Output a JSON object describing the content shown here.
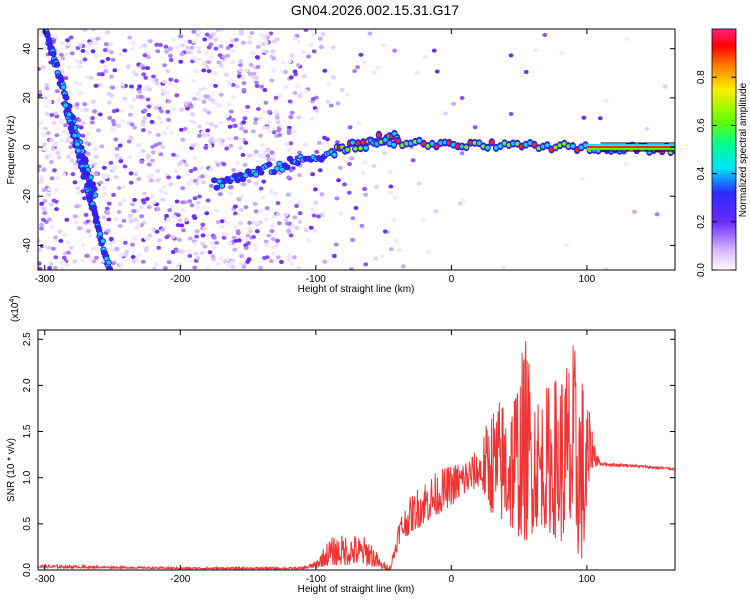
{
  "title": "GN04.2026.002.15.31.G17",
  "colors": {
    "trace": "#ee3333",
    "spectrogram_base": "#6a2bff",
    "frame": "#000000"
  },
  "chart_data": [
    {
      "type": "heatmap",
      "xlabel": "Height of straight line (km)",
      "ylabel": "Frequency (Hz)",
      "xlim": [
        -305,
        165
      ],
      "ylim": [
        -50,
        48
      ],
      "x_ticks": [
        -300,
        -200,
        -100,
        0,
        100
      ],
      "x_tick_labels": [
        "-300",
        "-200",
        "-100",
        "0",
        "100"
      ],
      "y_ticks": [
        -40,
        -20,
        0,
        20,
        40
      ],
      "y_tick_labels": [
        "-40",
        "-20",
        "0",
        "20",
        "40"
      ],
      "colorbar": {
        "label": "Normalized spectral amplitude",
        "range": [
          0,
          1
        ],
        "ticks": [
          0.0,
          0.2,
          0.4,
          0.6,
          0.8
        ],
        "tick_labels": [
          "0.0",
          "0.2",
          "0.4",
          "0.6",
          "0.8"
        ]
      },
      "ridges": [
        {
          "from": [
            -300,
            48
          ],
          "to": [
            -263,
            -20
          ]
        },
        {
          "from": [
            -285,
            18
          ],
          "to": [
            -252,
            -50
          ]
        },
        {
          "from": [
            -175,
            -15
          ],
          "to": [
            -40,
            5
          ]
        },
        {
          "from": [
            -55,
            2
          ],
          "to": [
            165,
            -1
          ]
        }
      ],
      "grid": false
    },
    {
      "type": "line",
      "xlabel": "Height of straight line (km)",
      "ylabel": "SNR (10 * v/v)",
      "y_multiplier": "(x10",
      "y_multiplier_exp": "4",
      "y_multiplier_close": ")",
      "xlim": [
        -305,
        165
      ],
      "ylim": [
        0,
        2.6
      ],
      "x_ticks": [
        -300,
        -200,
        -100,
        0,
        100
      ],
      "x_tick_labels": [
        "-300",
        "-200",
        "-100",
        "0",
        "100"
      ],
      "y_ticks": [
        0,
        0.5,
        1.0,
        1.5,
        2.0,
        2.5
      ],
      "y_tick_labels": [
        "0.0",
        "0.5",
        "1.0",
        "1.5",
        "2.0",
        "2.5"
      ],
      "series": [
        {
          "envelope": [
            [
              -305,
              0.02,
              0.06
            ],
            [
              -250,
              0.02,
              0.04
            ],
            [
              -200,
              0.01,
              0.03
            ],
            [
              -110,
              0.01,
              0.03
            ],
            [
              -100,
              0.02,
              0.1
            ],
            [
              -90,
              0.05,
              0.35
            ],
            [
              -75,
              0.05,
              0.4
            ],
            [
              -60,
              0.04,
              0.35
            ],
            [
              -52,
              0.01,
              0.1
            ],
            [
              -45,
              0.0,
              0.05
            ],
            [
              -38,
              0.3,
              0.6
            ],
            [
              -30,
              0.4,
              0.8
            ],
            [
              -20,
              0.5,
              1.0
            ],
            [
              0,
              0.7,
              1.15
            ],
            [
              20,
              0.9,
              1.3
            ],
            [
              30,
              0.6,
              1.8
            ],
            [
              45,
              0.4,
              2.0
            ],
            [
              55,
              0.3,
              2.55
            ],
            [
              65,
              0.5,
              1.9
            ],
            [
              80,
              0.3,
              2.2
            ],
            [
              90,
              0.2,
              2.5
            ],
            [
              98,
              0.05,
              2.1
            ],
            [
              103,
              1.1,
              1.6
            ],
            [
              110,
              1.13,
              1.17
            ],
            [
              130,
              1.12,
              1.15
            ],
            [
              165,
              1.08,
              1.11
            ]
          ]
        }
      ],
      "grid": false
    }
  ]
}
